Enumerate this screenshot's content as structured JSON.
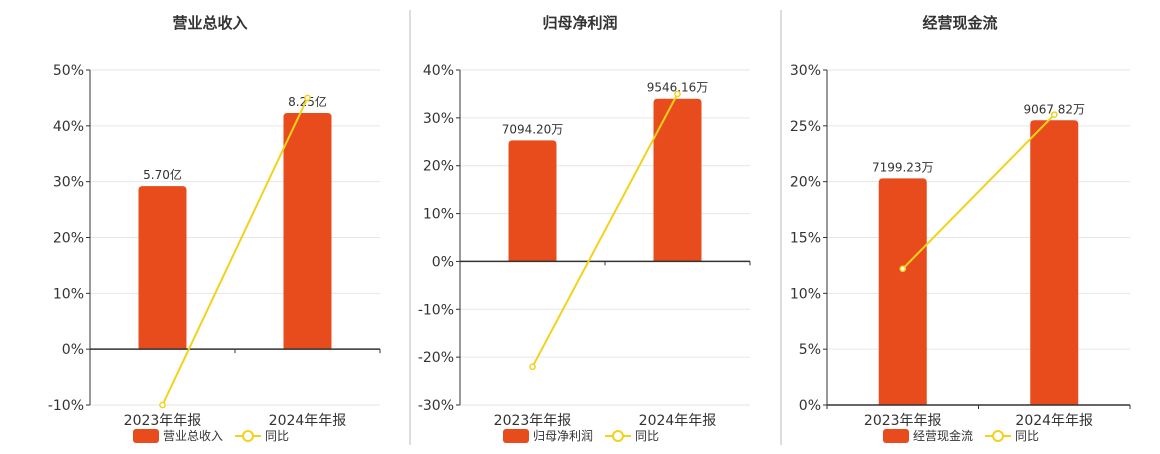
{
  "colors": {
    "bar": "#E84C1C",
    "line": "#F2D21B",
    "grid": "#E6E6E6",
    "axis": "#333333",
    "divider": "#BBBBBB",
    "text": "#333333"
  },
  "chart_data": [
    {
      "type": "bar",
      "title": "营业总收入",
      "categories": [
        "2023年年报",
        "2024年年报"
      ],
      "series": [
        {
          "name": "营业总收入",
          "type": "bar",
          "values": [
            29.2,
            42.3
          ],
          "labels": [
            "5.70亿",
            "8.25亿"
          ]
        },
        {
          "name": "同比",
          "type": "line",
          "values": [
            -10,
            45
          ]
        }
      ],
      "ylim": [
        -10,
        50
      ],
      "yticks": [
        "-10%",
        "0%",
        "10%",
        "20%",
        "30%",
        "40%",
        "50%"
      ],
      "legend": [
        "营业总收入",
        "同比"
      ],
      "grid": true,
      "legend_position": "bottom"
    },
    {
      "type": "bar",
      "title": "归母净利润",
      "categories": [
        "2023年年报",
        "2024年年报"
      ],
      "series": [
        {
          "name": "归母净利润",
          "type": "bar",
          "values": [
            25.3,
            34.0
          ],
          "labels": [
            "7094.20万",
            "9546.16万"
          ]
        },
        {
          "name": "同比",
          "type": "line",
          "values": [
            -22,
            35
          ]
        }
      ],
      "ylim": [
        -30,
        40
      ],
      "yticks": [
        "-30%",
        "-20%",
        "-10%",
        "0%",
        "10%",
        "20%",
        "30%",
        "40%"
      ],
      "legend": [
        "归母净利润",
        "同比"
      ],
      "grid": true,
      "legend_position": "bottom"
    },
    {
      "type": "bar",
      "title": "经营现金流",
      "categories": [
        "2023年年报",
        "2024年年报"
      ],
      "series": [
        {
          "name": "经营现金流",
          "type": "bar",
          "values": [
            20.3,
            25.5
          ],
          "labels": [
            "7199.23万",
            "9067.82万"
          ]
        },
        {
          "name": "同比",
          "type": "line",
          "values": [
            12.2,
            26
          ]
        }
      ],
      "ylim": [
        0,
        30
      ],
      "yticks": [
        "0%",
        "5%",
        "10%",
        "15%",
        "20%",
        "25%",
        "30%"
      ],
      "legend": [
        "经营现金流",
        "同比"
      ],
      "grid": true,
      "legend_position": "bottom"
    }
  ]
}
